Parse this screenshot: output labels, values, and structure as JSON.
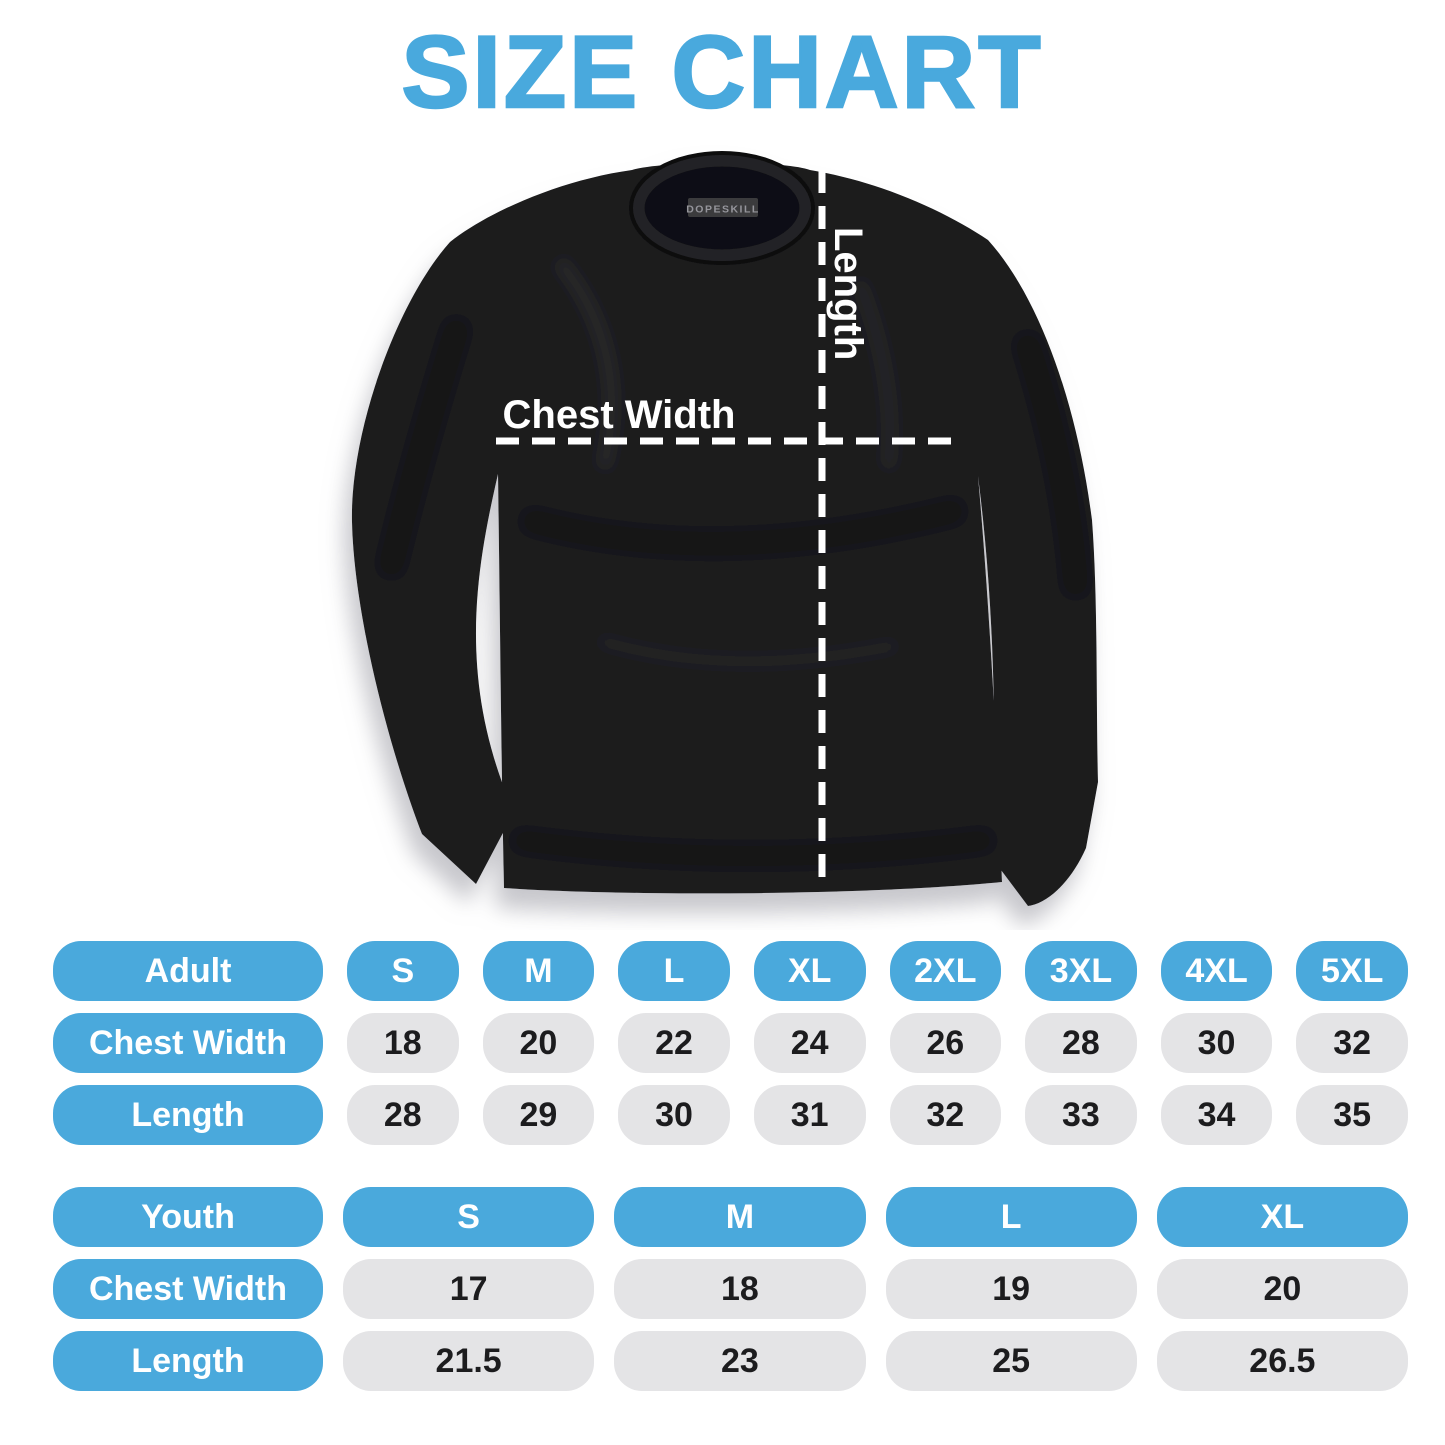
{
  "title": "SIZE CHART",
  "shirt_diagram": {
    "chest_width_label": "Chest Width",
    "length_label": "Length",
    "collar_brand_label": "DOPESKILL"
  },
  "colors": {
    "accent_blue": "#4AA9DC",
    "cell_grey": "#E4E4E6",
    "shirt_black": "#1A1A1C",
    "measure_line_white": "#FFFFFF"
  },
  "chart_data": [
    {
      "type": "table",
      "title": "Adult size table",
      "columns": [
        "Adult",
        "S",
        "M",
        "L",
        "XL",
        "2XL",
        "3XL",
        "4XL",
        "5XL"
      ],
      "rows": [
        [
          "Chest Width",
          18,
          20,
          22,
          24,
          26,
          28,
          30,
          32
        ],
        [
          "Length",
          28,
          29,
          30,
          31,
          32,
          33,
          34,
          35
        ]
      ]
    },
    {
      "type": "table",
      "title": "Youth size table",
      "columns": [
        "Youth",
        "S",
        "M",
        "L",
        "XL"
      ],
      "rows": [
        [
          "Chest Width",
          17,
          18,
          19,
          20
        ],
        [
          "Length",
          21.5,
          23,
          25,
          26.5
        ]
      ]
    }
  ]
}
